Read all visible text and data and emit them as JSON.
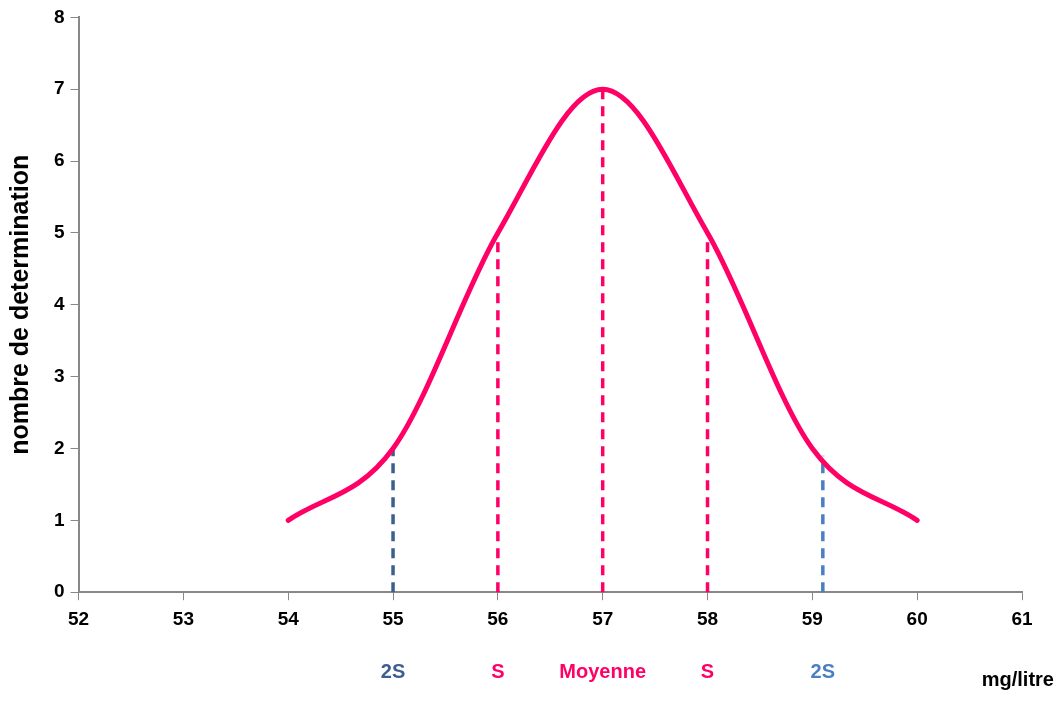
{
  "chart_data": {
    "type": "line",
    "xlabel": "mg/litre",
    "ylabel": "nombre de determination",
    "x": [
      54,
      55,
      56,
      57,
      58,
      59,
      60
    ],
    "series": [
      {
        "color": "#ff0066",
        "values": [
          1,
          2,
          5,
          7,
          5,
          2,
          1
        ]
      }
    ],
    "xlim": [
      52,
      61
    ],
    "xticks": [
      52,
      53,
      54,
      55,
      56,
      57,
      58,
      59,
      60,
      61
    ],
    "ylim": [
      0,
      8
    ],
    "yticks": [
      0,
      1,
      2,
      3,
      4,
      5,
      6,
      7,
      8
    ],
    "grid": false,
    "legend": false,
    "marker": "none",
    "line_style": "solid",
    "ref_lines": [
      {
        "axis": "x",
        "value": 55,
        "label": "2S",
        "color": "#3b5f8f",
        "line_style": "dashed"
      },
      {
        "axis": "x",
        "value": 56,
        "label": "S",
        "color": "#ff0066",
        "line_style": "dashed"
      },
      {
        "axis": "x",
        "value": 57,
        "label": "Moyenne",
        "color": "#ff0066",
        "line_style": "dashed"
      },
      {
        "axis": "x",
        "value": 58,
        "label": "S",
        "color": "#ff0066",
        "line_style": "dashed"
      },
      {
        "axis": "x",
        "value": 59.1,
        "label": "2S",
        "color": "#4a7fc1",
        "line_style": "dashed"
      }
    ]
  }
}
